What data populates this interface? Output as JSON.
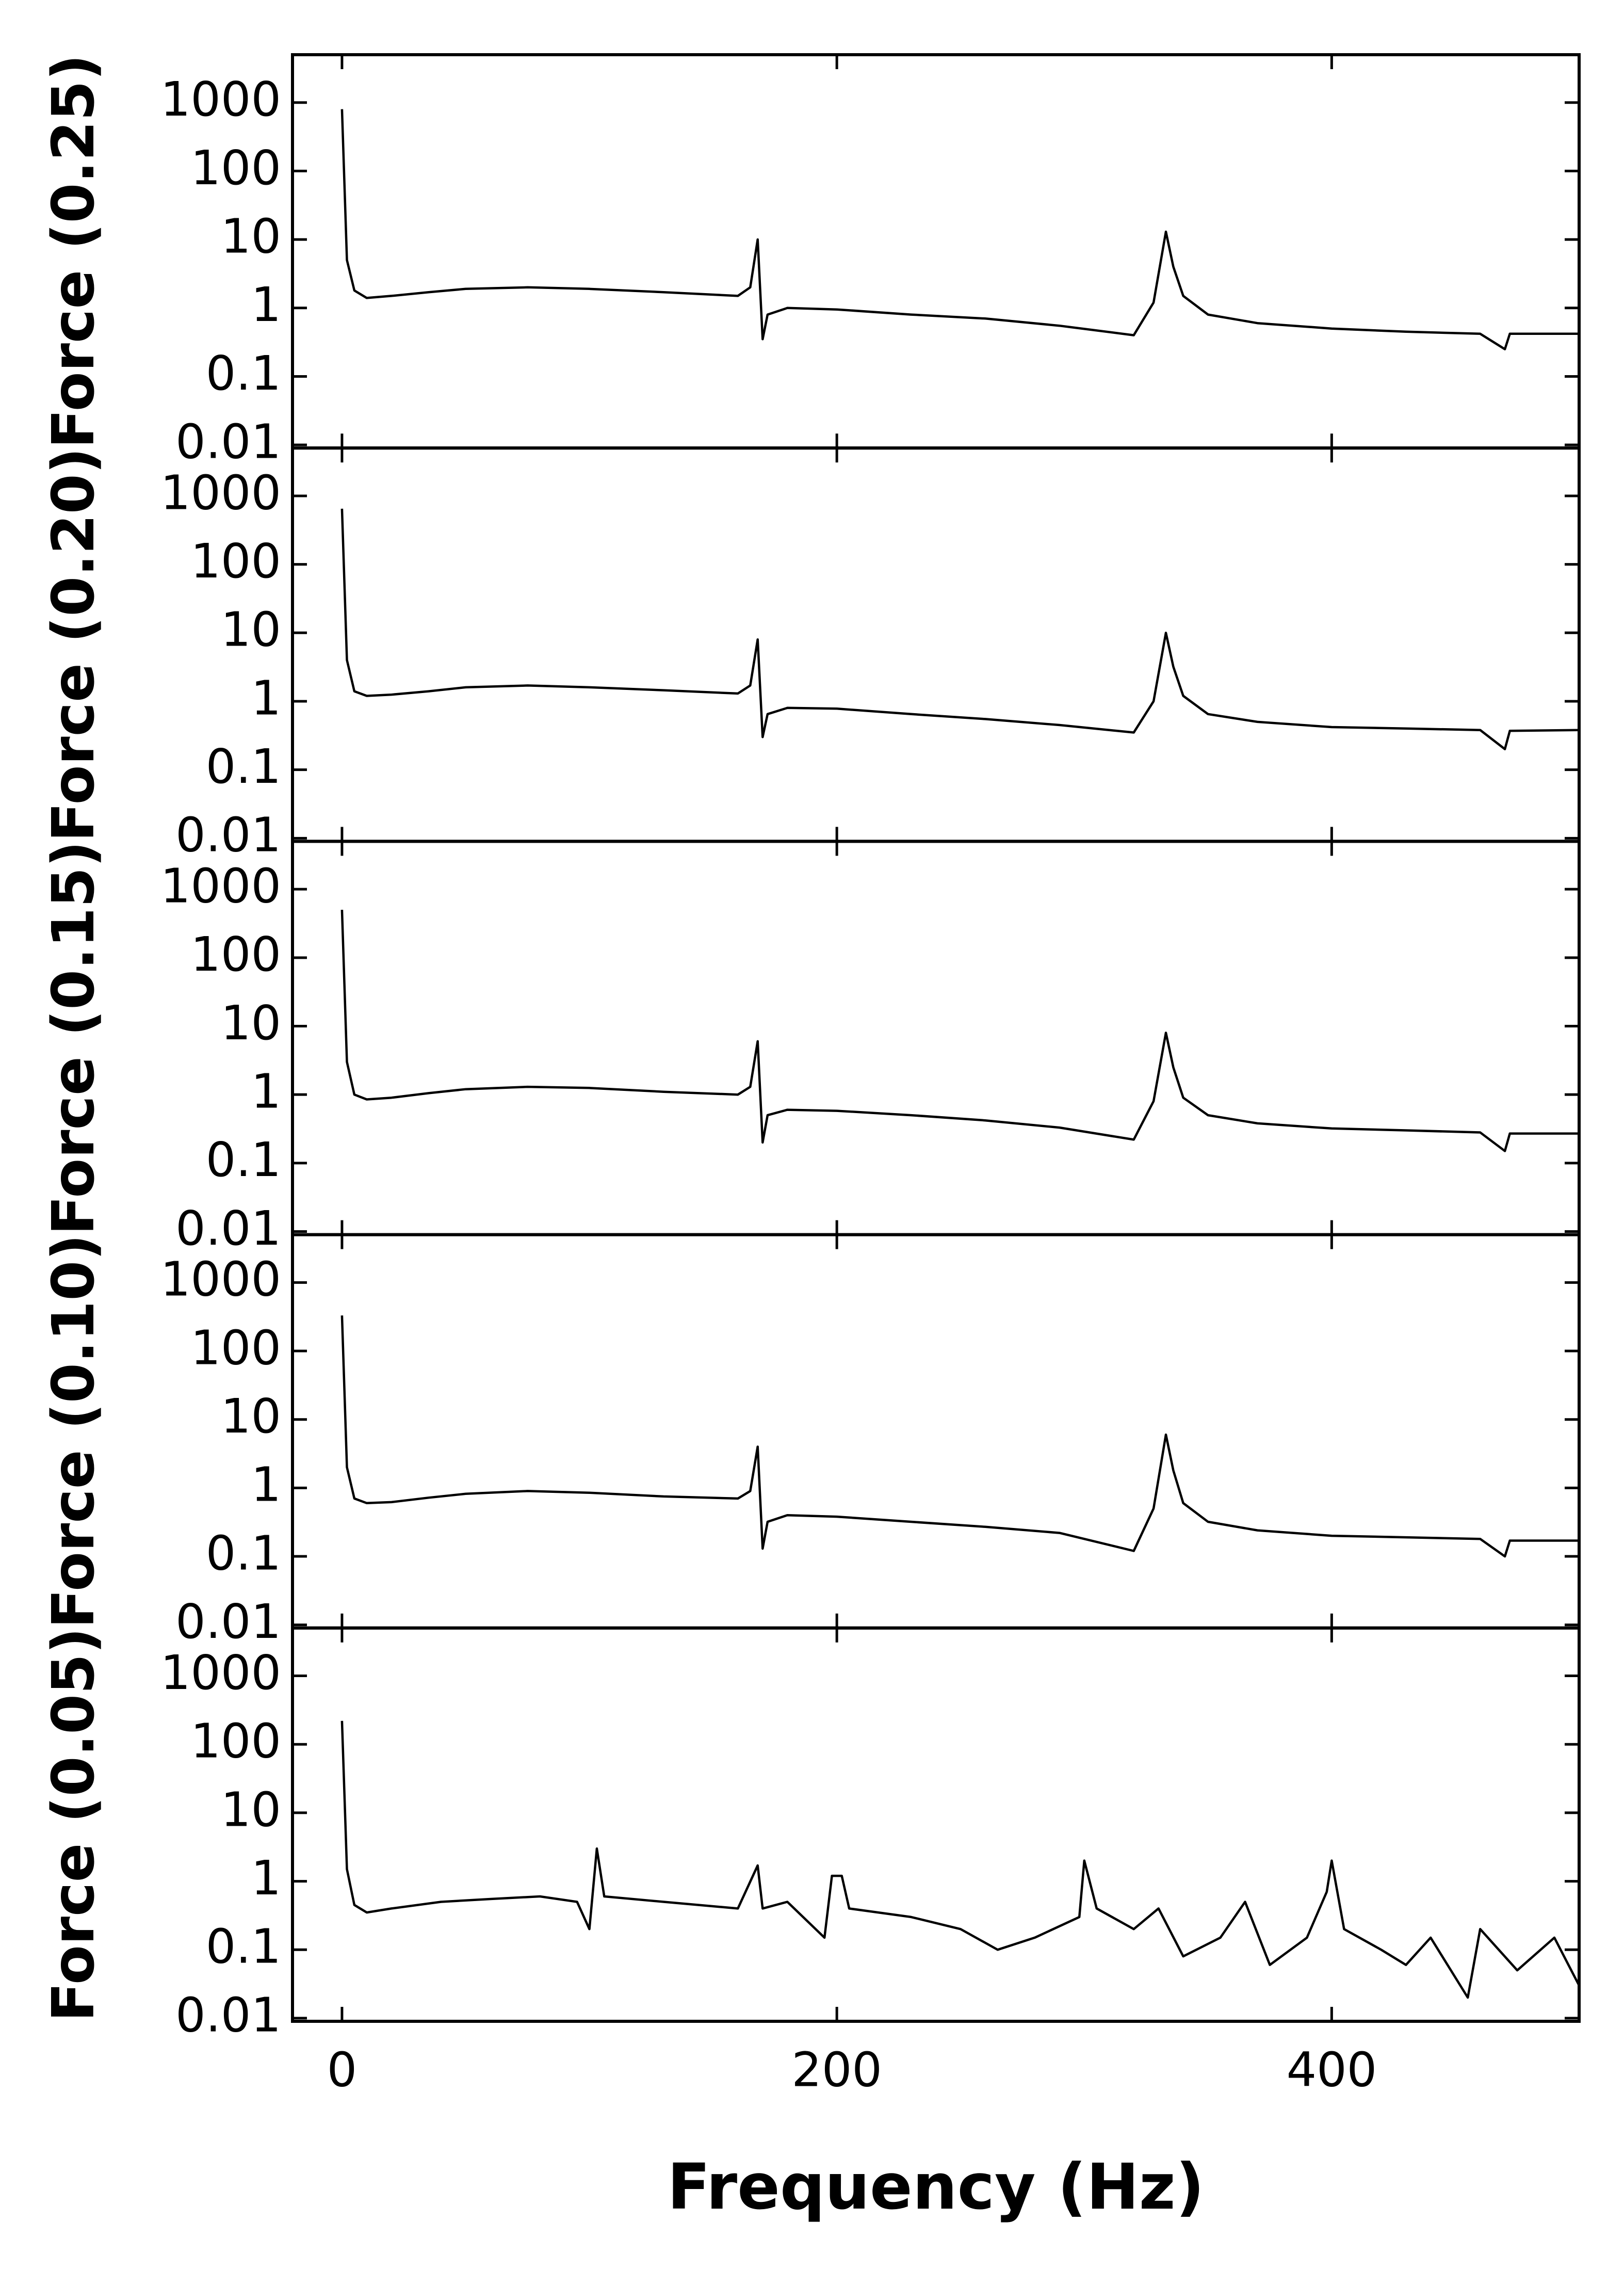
{
  "chart_data": [
    {
      "type": "line",
      "ylabel": "Force (0.25)",
      "log_y": true,
      "color": "#000000",
      "xlim": [
        -20,
        500
      ],
      "xticks": [
        0,
        200,
        400
      ],
      "ylim": [
        0.009,
        5000
      ],
      "yticks": [
        0.01,
        0.1,
        1,
        10,
        100,
        1000
      ],
      "x": [
        0,
        2,
        5,
        10,
        20,
        35,
        50,
        75,
        100,
        130,
        160,
        165,
        168,
        170,
        172,
        180,
        200,
        230,
        260,
        290,
        320,
        328,
        333,
        336,
        340,
        350,
        370,
        400,
        430,
        460,
        470,
        472,
        500
      ],
      "values": [
        800,
        5,
        1.8,
        1.4,
        1.5,
        1.7,
        1.9,
        2.0,
        1.9,
        1.7,
        1.5,
        2,
        10,
        0.35,
        0.8,
        1.0,
        0.95,
        0.8,
        0.7,
        0.55,
        0.4,
        1.2,
        13,
        4,
        1.5,
        0.8,
        0.6,
        0.5,
        0.45,
        0.42,
        0.25,
        0.42,
        0.42
      ]
    },
    {
      "type": "line",
      "ylabel": "Force (0.20)",
      "log_y": true,
      "color": "#000000",
      "xlim": [
        -20,
        500
      ],
      "xticks": [
        0,
        200,
        400
      ],
      "ylim": [
        0.009,
        5000
      ],
      "yticks": [
        0.01,
        0.1,
        1,
        10,
        100,
        1000
      ],
      "x": [
        0,
        2,
        5,
        10,
        20,
        35,
        50,
        75,
        100,
        130,
        160,
        165,
        168,
        170,
        172,
        180,
        200,
        230,
        260,
        290,
        320,
        328,
        333,
        336,
        340,
        350,
        370,
        400,
        430,
        460,
        470,
        472,
        500
      ],
      "values": [
        650,
        4,
        1.4,
        1.2,
        1.25,
        1.4,
        1.6,
        1.7,
        1.6,
        1.45,
        1.3,
        1.7,
        8,
        0.3,
        0.65,
        0.8,
        0.78,
        0.65,
        0.55,
        0.45,
        0.35,
        1.0,
        10,
        3.2,
        1.2,
        0.65,
        0.5,
        0.42,
        0.4,
        0.38,
        0.2,
        0.37,
        0.38
      ]
    },
    {
      "type": "line",
      "ylabel": "Force (0.15)",
      "log_y": true,
      "color": "#000000",
      "xlim": [
        -20,
        500
      ],
      "xticks": [
        0,
        200,
        400
      ],
      "ylim": [
        0.009,
        5000
      ],
      "yticks": [
        0.01,
        0.1,
        1,
        10,
        100,
        1000
      ],
      "x": [
        0,
        2,
        5,
        10,
        20,
        35,
        50,
        75,
        100,
        130,
        160,
        165,
        168,
        170,
        172,
        180,
        200,
        230,
        260,
        290,
        320,
        328,
        333,
        336,
        340,
        350,
        370,
        400,
        430,
        460,
        470,
        472,
        500
      ],
      "values": [
        500,
        3,
        1.0,
        0.85,
        0.9,
        1.05,
        1.2,
        1.3,
        1.25,
        1.1,
        1.0,
        1.3,
        6,
        0.2,
        0.5,
        0.6,
        0.58,
        0.5,
        0.42,
        0.33,
        0.22,
        0.8,
        8,
        2.5,
        0.9,
        0.5,
        0.38,
        0.32,
        0.3,
        0.28,
        0.15,
        0.27,
        0.27
      ]
    },
    {
      "type": "line",
      "ylabel": "Force (0.10)",
      "log_y": true,
      "color": "#000000",
      "xlim": [
        -20,
        500
      ],
      "xticks": [
        0,
        200,
        400
      ],
      "ylim": [
        0.009,
        5000
      ],
      "yticks": [
        0.01,
        0.1,
        1,
        10,
        100,
        1000
      ],
      "x": [
        0,
        2,
        5,
        10,
        20,
        35,
        50,
        75,
        100,
        130,
        160,
        165,
        168,
        170,
        172,
        180,
        200,
        230,
        260,
        290,
        320,
        328,
        333,
        336,
        340,
        350,
        370,
        400,
        430,
        460,
        470,
        472,
        500
      ],
      "values": [
        330,
        2,
        0.7,
        0.6,
        0.62,
        0.72,
        0.82,
        0.9,
        0.85,
        0.75,
        0.7,
        0.9,
        4,
        0.13,
        0.32,
        0.4,
        0.38,
        0.32,
        0.27,
        0.22,
        0.12,
        0.5,
        6,
        1.8,
        0.6,
        0.32,
        0.24,
        0.2,
        0.19,
        0.18,
        0.1,
        0.17,
        0.17
      ]
    },
    {
      "type": "line",
      "ylabel": "Force (0.05)",
      "xlabel": "Frequency (Hz)",
      "log_y": true,
      "color": "#000000",
      "xlim": [
        -20,
        500
      ],
      "xticks": [
        0,
        200,
        400
      ],
      "ylim": [
        0.009,
        5000
      ],
      "yticks": [
        0.01,
        0.1,
        1,
        10,
        100,
        1000
      ],
      "x": [
        0,
        2,
        5,
        10,
        20,
        40,
        60,
        80,
        95,
        100,
        103,
        106,
        130,
        160,
        168,
        170,
        180,
        195,
        198,
        202,
        205,
        230,
        250,
        265,
        280,
        298,
        300,
        305,
        320,
        330,
        340,
        355,
        365,
        375,
        390,
        398,
        400,
        405,
        420,
        430,
        440,
        455,
        460,
        475,
        490,
        500
      ],
      "values": [
        220,
        1.5,
        0.45,
        0.35,
        0.4,
        0.5,
        0.55,
        0.6,
        0.5,
        0.2,
        3,
        0.6,
        0.5,
        0.4,
        1.7,
        0.4,
        0.5,
        0.15,
        1.2,
        1.2,
        0.4,
        0.3,
        0.2,
        0.1,
        0.15,
        0.3,
        2,
        0.4,
        0.2,
        0.4,
        0.08,
        0.15,
        0.5,
        0.06,
        0.15,
        0.7,
        2,
        0.2,
        0.1,
        0.06,
        0.15,
        0.02,
        0.2,
        0.05,
        0.15,
        0.03
      ]
    }
  ]
}
